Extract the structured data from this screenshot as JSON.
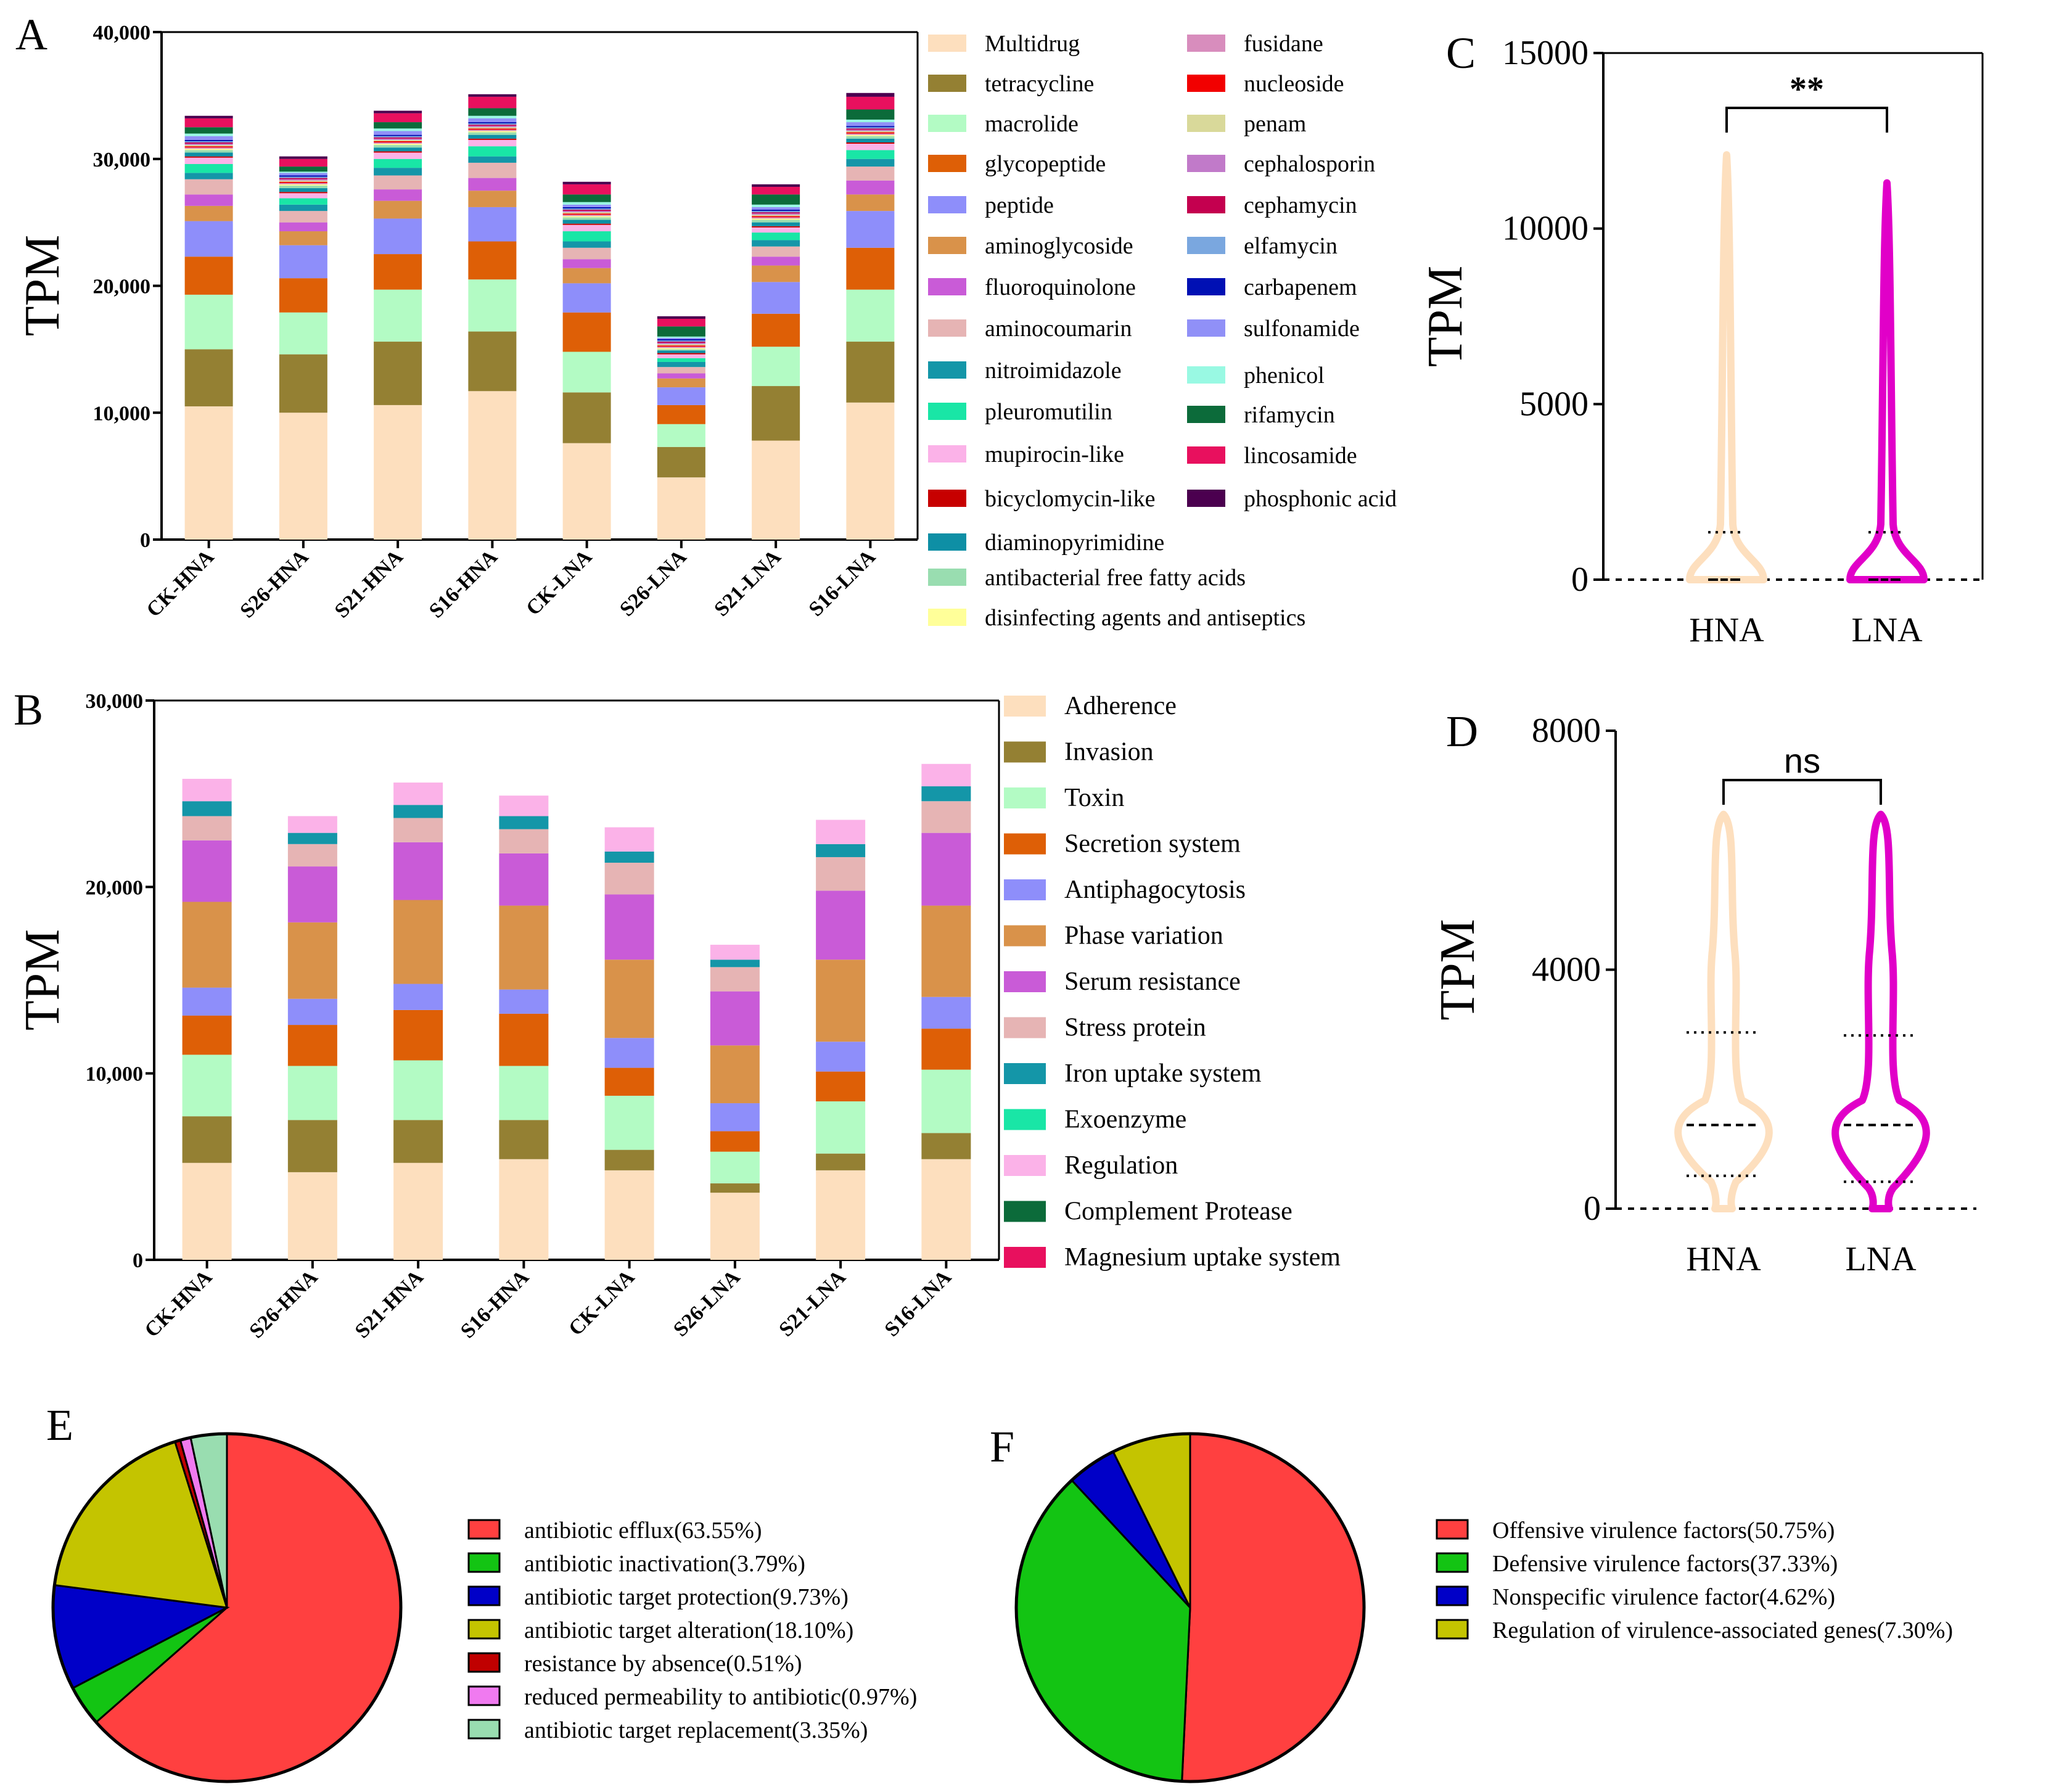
{
  "panels": {
    "A": "A",
    "B": "B",
    "C": "C",
    "D": "D",
    "E": "E",
    "F": "F"
  },
  "chart_data": [
    {
      "id": "A",
      "type": "bar",
      "stacked": true,
      "ylabel": "TPM",
      "ylim": [
        0,
        40000
      ],
      "yticks": [
        0,
        10000,
        20000,
        30000,
        40000
      ],
      "ytick_labels": [
        "0",
        "10,000",
        "20,000",
        "30,000",
        "40,000"
      ],
      "categories": [
        "CK-HNA",
        "S26-HNA",
        "S21-HNA",
        "S16-HNA",
        "CK-LNA",
        "S26-LNA",
        "S21-LNA",
        "S16-LNA"
      ],
      "series": [
        {
          "name": "Multidrug",
          "color": "#FDDFBE",
          "values": [
            10500,
            10000,
            10600,
            11700,
            7600,
            4900,
            7800,
            10800
          ]
        },
        {
          "name": "tetracycline",
          "color": "#948033",
          "values": [
            4500,
            4600,
            5000,
            4700,
            4000,
            2400,
            4300,
            4800
          ]
        },
        {
          "name": "macrolide",
          "color": "#B3FBC4",
          "values": [
            4300,
            3300,
            4100,
            4100,
            3200,
            1800,
            3100,
            4100
          ]
        },
        {
          "name": "glycopeptide",
          "color": "#DE5F06",
          "values": [
            3000,
            2700,
            2800,
            3000,
            3100,
            1500,
            2600,
            3300
          ]
        },
        {
          "name": "peptide",
          "color": "#8E8EFA",
          "values": [
            2800,
            2600,
            2800,
            2700,
            2300,
            1400,
            2500,
            2900
          ]
        },
        {
          "name": "aminoglycoside",
          "color": "#D9924A",
          "values": [
            1200,
            1100,
            1400,
            1300,
            1200,
            700,
            1300,
            1300
          ]
        },
        {
          "name": "fluoroquinolone",
          "color": "#C95BD7",
          "values": [
            900,
            700,
            900,
            1000,
            700,
            400,
            700,
            1100
          ]
        },
        {
          "name": "aminocoumarin",
          "color": "#E6B4B4",
          "values": [
            1200,
            900,
            1100,
            1200,
            900,
            500,
            800,
            1100
          ]
        },
        {
          "name": "nitroimidazole",
          "color": "#1496A8",
          "values": [
            500,
            500,
            600,
            500,
            500,
            400,
            500,
            600
          ]
        },
        {
          "name": "pleuromutilin",
          "color": "#19E6A6",
          "values": [
            700,
            500,
            700,
            800,
            800,
            300,
            600,
            700
          ]
        },
        {
          "name": "mupirocin-like",
          "color": "#FBB2E8",
          "values": [
            500,
            400,
            500,
            500,
            500,
            300,
            400,
            500
          ]
        },
        {
          "name": "bicyclomycin-like",
          "color": "#C70000",
          "values": [
            100,
            100,
            100,
            100,
            100,
            100,
            100,
            100
          ]
        },
        {
          "name": "diaminopyrimidine",
          "color": "#0E8FA5",
          "values": [
            300,
            300,
            300,
            300,
            300,
            200,
            300,
            300
          ]
        },
        {
          "name": "antibacterial free fatty acids",
          "color": "#99DDB0",
          "values": [
            200,
            200,
            200,
            200,
            200,
            100,
            200,
            200
          ]
        },
        {
          "name": "disinfecting agents and antiseptics",
          "color": "#FFFF99",
          "values": [
            100,
            100,
            100,
            100,
            100,
            100,
            100,
            100
          ]
        },
        {
          "name": "fusidane",
          "color": "#D88DBD",
          "values": [
            100,
            100,
            100,
            100,
            100,
            100,
            100,
            100
          ]
        },
        {
          "name": "nucleoside",
          "color": "#F20000",
          "values": [
            100,
            100,
            100,
            100,
            100,
            100,
            100,
            100
          ]
        },
        {
          "name": "penam",
          "color": "#D9D99A",
          "values": [
            100,
            100,
            100,
            100,
            100,
            100,
            100,
            100
          ]
        },
        {
          "name": "cephalosporin",
          "color": "#C17AC9",
          "values": [
            100,
            100,
            100,
            100,
            100,
            100,
            100,
            100
          ]
        },
        {
          "name": "cephamycin",
          "color": "#C4004F",
          "values": [
            100,
            100,
            100,
            100,
            100,
            100,
            100,
            100
          ]
        },
        {
          "name": "elfamycin",
          "color": "#7AA7DF",
          "values": [
            100,
            100,
            100,
            100,
            100,
            100,
            100,
            100
          ]
        },
        {
          "name": "carbapenem",
          "color": "#0010B4",
          "values": [
            100,
            100,
            100,
            100,
            100,
            100,
            100,
            100
          ]
        },
        {
          "name": "sulfonamide",
          "color": "#9090F7",
          "values": [
            300,
            200,
            300,
            300,
            200,
            100,
            200,
            300
          ]
        },
        {
          "name": "phenicol",
          "color": "#99F9E3",
          "values": [
            200,
            100,
            200,
            200,
            200,
            100,
            200,
            200
          ]
        },
        {
          "name": "rifamycin",
          "color": "#0C6B3A",
          "values": [
            500,
            400,
            500,
            600,
            600,
            800,
            800,
            800
          ]
        },
        {
          "name": "lincosamide",
          "color": "#E8105E",
          "values": [
            700,
            600,
            700,
            900,
            800,
            600,
            600,
            1000
          ]
        },
        {
          "name": "phosphonic acid",
          "color": "#4B004F",
          "values": [
            200,
            200,
            200,
            200,
            200,
            200,
            200,
            300
          ]
        }
      ]
    },
    {
      "id": "B",
      "type": "bar",
      "stacked": true,
      "ylabel": "TPM",
      "ylim": [
        0,
        30000
      ],
      "yticks": [
        0,
        10000,
        20000,
        30000
      ],
      "ytick_labels": [
        "0",
        "10,000",
        "20,000",
        "30,000"
      ],
      "categories": [
        "CK-HNA",
        "S26-HNA",
        "S21-HNA",
        "S16-HNA",
        "CK-LNA",
        "S26-LNA",
        "S21-LNA",
        "S16-LNA"
      ],
      "series": [
        {
          "name": "Adherence",
          "color": "#FDDFBE",
          "values": [
            5200,
            4700,
            5200,
            5400,
            4800,
            3600,
            4800,
            5400
          ]
        },
        {
          "name": "Invasion",
          "color": "#948033",
          "values": [
            2500,
            2800,
            2300,
            2100,
            1100,
            500,
            900,
            1400
          ]
        },
        {
          "name": "Toxin",
          "color": "#B3FBC4",
          "values": [
            3300,
            2900,
            3200,
            2900,
            2900,
            1700,
            2800,
            3400
          ]
        },
        {
          "name": "Secretion system",
          "color": "#DE5F06",
          "values": [
            2100,
            2200,
            2700,
            2800,
            1500,
            1100,
            1600,
            2200
          ]
        },
        {
          "name": "Antiphagocytosis",
          "color": "#8E8EFA",
          "values": [
            1500,
            1400,
            1400,
            1300,
            1600,
            1500,
            1600,
            1700
          ]
        },
        {
          "name": "Phase variation",
          "color": "#D9924A",
          "values": [
            4600,
            4100,
            4500,
            4500,
            4200,
            3100,
            4400,
            4900
          ]
        },
        {
          "name": "Serum resistance",
          "color": "#C95BD7",
          "values": [
            3300,
            3000,
            3100,
            2800,
            3500,
            2900,
            3700,
            3900
          ]
        },
        {
          "name": "Stress protein",
          "color": "#E6B4B4",
          "values": [
            1300,
            1200,
            1300,
            1300,
            1700,
            1300,
            1800,
            1700
          ]
        },
        {
          "name": "Iron uptake system",
          "color": "#1496A8",
          "values": [
            800,
            600,
            700,
            700,
            600,
            400,
            700,
            800
          ]
        },
        {
          "name": "Exoenzyme",
          "color": "#19E6A6",
          "values": [
            0,
            0,
            0,
            0,
            0,
            0,
            0,
            0
          ]
        },
        {
          "name": "Regulation",
          "color": "#FBB2E8",
          "values": [
            1200,
            900,
            1200,
            1100,
            1300,
            800,
            1300,
            1200
          ]
        },
        {
          "name": "Complement Protease",
          "color": "#0C6B3A",
          "values": [
            0,
            0,
            0,
            0,
            0,
            0,
            0,
            0
          ]
        },
        {
          "name": "Magnesium uptake system",
          "color": "#E8105E",
          "values": [
            0,
            0,
            0,
            0,
            0,
            0,
            0,
            0
          ]
        }
      ]
    },
    {
      "id": "C",
      "type": "violin",
      "ylabel": "TPM",
      "ylim": [
        0,
        15000
      ],
      "yticks": [
        0,
        5000,
        10000,
        15000
      ],
      "ytick_labels": [
        "0",
        "5000",
        "10000",
        "15000"
      ],
      "categories": [
        "HNA",
        "LNA"
      ],
      "series": [
        {
          "name": "HNA",
          "color": "#FDDFBE",
          "max": 12100,
          "median": 0,
          "q1": 0,
          "q3": 1000
        },
        {
          "name": "LNA",
          "color": "#E100C8",
          "max": 11300,
          "median": 0,
          "q1": 0,
          "q3": 1000
        }
      ],
      "significance": "**"
    },
    {
      "id": "D",
      "type": "violin",
      "ylabel": "TPM",
      "ylim": [
        0,
        8000
      ],
      "yticks": [
        0,
        4000,
        8000
      ],
      "ytick_labels": [
        "0",
        "4000",
        "8000"
      ],
      "categories": [
        "HNA",
        "LNA"
      ],
      "series": [
        {
          "name": "HNA",
          "color": "#FDDFBE",
          "max": 6600,
          "median": 1400,
          "q1": 550,
          "q3": 2950
        },
        {
          "name": "LNA",
          "color": "#E100C8",
          "max": 6600,
          "median": 1400,
          "q1": 450,
          "q3": 2900
        }
      ],
      "significance": "ns"
    },
    {
      "id": "E",
      "type": "pie",
      "slices": [
        {
          "label": "antibiotic efflux(63.55%)",
          "value": 63.55,
          "color": "#FF4040"
        },
        {
          "label": "antibiotic inactivation(3.79%)",
          "value": 3.79,
          "color": "#13C413"
        },
        {
          "label": "antibiotic target protection(9.73%)",
          "value": 9.73,
          "color": "#0000C8"
        },
        {
          "label": "antibiotic target alteration(18.10%)",
          "value": 18.1,
          "color": "#C4C400"
        },
        {
          "label": "resistance by absence(0.51%)",
          "value": 0.51,
          "color": "#C00000"
        },
        {
          "label": "reduced permeability to antibiotic(0.97%)",
          "value": 0.97,
          "color": "#F07AF0"
        },
        {
          "label": "antibiotic target replacement(3.35%)",
          "value": 3.35,
          "color": "#99DDB0"
        }
      ]
    },
    {
      "id": "F",
      "type": "pie",
      "slices": [
        {
          "label": "Offensive virulence factors(50.75%)",
          "value": 50.75,
          "color": "#FF4040"
        },
        {
          "label": "Defensive virulence factors(37.33%)",
          "value": 37.33,
          "color": "#13C413"
        },
        {
          "label": "Nonspecific virulence factor(4.62%)",
          "value": 4.62,
          "color": "#0000C8"
        },
        {
          "label": "Regulation of virulence-associated genes(7.30%)",
          "value": 7.3,
          "color": "#C4C400"
        }
      ]
    }
  ]
}
